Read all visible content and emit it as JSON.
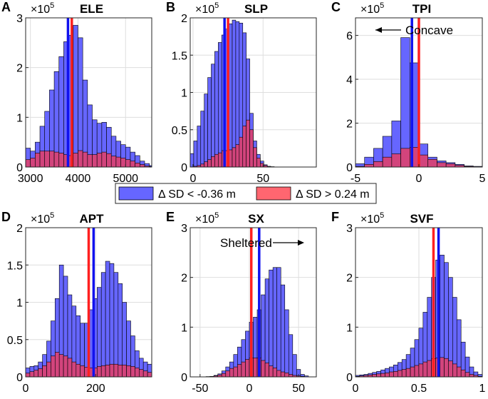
{
  "figure": {
    "legend": [
      {
        "label": "Δ SD < -0.36 m",
        "color": "#6666ff"
      },
      {
        "label": "Δ SD > 0.24 m",
        "color": "#ff6670"
      }
    ],
    "colors": {
      "blue_fill": "#6666ff",
      "red_fill": "#ff6670",
      "overlap_fill": "#d2447c",
      "blue_line": "#1111ee",
      "red_line": "#ff2020",
      "edge": "#000000",
      "grid": "#dedede"
    }
  },
  "chart_data": [
    {
      "id": "A",
      "letter": "A",
      "title": "ELE",
      "type": "bar",
      "exponent_label": "×10",
      "exponent": "5",
      "xlim": [
        2900,
        5550
      ],
      "ylim": [
        0,
        3
      ],
      "xticks": [
        3000,
        4000,
        5000
      ],
      "xtick_labels": [
        "3000",
        "4000",
        "5000"
      ],
      "yticks": [
        0,
        1,
        2,
        3
      ],
      "ytick_labels": [
        "0",
        "1",
        "2",
        "3"
      ],
      "bin_start": 2900,
      "bin_width": 100,
      "series": [
        {
          "name": "Δ SD < -0.36 m",
          "values": [
            0.38,
            0.32,
            0.5,
            0.82,
            1.12,
            1.55,
            1.92,
            2.22,
            2.52,
            2.65,
            2.85,
            2.6,
            1.75,
            1.25,
            0.95,
            0.88,
            0.9,
            0.8,
            0.62,
            0.52,
            0.45,
            0.4,
            0.3,
            0.23,
            0.12,
            0.07,
            0.03
          ]
        },
        {
          "name": "Δ SD > 0.24 m",
          "values": [
            0.15,
            0.18,
            0.28,
            0.32,
            0.32,
            0.32,
            0.3,
            0.28,
            0.25,
            0.23,
            0.28,
            0.33,
            0.3,
            0.25,
            0.25,
            0.28,
            0.3,
            0.27,
            0.22,
            0.2,
            0.18,
            0.15,
            0.12,
            0.08,
            0.05,
            0.02,
            0.01
          ]
        }
      ],
      "vlines": {
        "blue": 3790,
        "red": 3870
      }
    },
    {
      "id": "B",
      "letter": "B",
      "title": "SLP",
      "type": "bar",
      "exponent_label": "×10",
      "exponent": "5",
      "xlim": [
        -2,
        88
      ],
      "ylim": [
        0,
        2
      ],
      "xticks": [
        0,
        50
      ],
      "xtick_labels": [
        "0",
        "50"
      ],
      "yticks": [
        0,
        0.5,
        1,
        1.5,
        2
      ],
      "ytick_labels": [
        "0",
        "0.5",
        "1",
        "1.5",
        "2"
      ],
      "bin_start": -2,
      "bin_width": 2.5,
      "series": [
        {
          "name": "Δ SD < -0.36 m",
          "values": [
            0.18,
            0.35,
            0.55,
            0.75,
            0.98,
            1.2,
            1.38,
            1.55,
            1.67,
            1.77,
            1.85,
            1.92,
            1.97,
            1.95,
            1.93,
            1.8,
            1.45,
            0.72,
            0.35,
            0.17,
            0.08,
            0.03,
            0.01,
            0.005,
            0.002,
            0.001,
            0.0,
            0.0,
            0.0,
            0.0,
            0.0,
            0.0,
            0.0,
            0.0,
            0.0,
            0.0
          ]
        },
        {
          "name": "Δ SD > 0.24 m",
          "values": [
            0.0,
            0.01,
            0.02,
            0.04,
            0.07,
            0.1,
            0.14,
            0.17,
            0.19,
            0.22,
            0.22,
            0.23,
            0.26,
            0.3,
            0.4,
            0.55,
            0.63,
            0.5,
            0.26,
            0.12,
            0.05,
            0.02,
            0.005,
            0.0,
            0.0,
            0.0,
            0.0,
            0.0,
            0.0,
            0.0,
            0.0,
            0.0,
            0.0,
            0.0,
            0.0,
            0.0
          ]
        }
      ],
      "vlines": {
        "blue": 22.5,
        "red": 25
      }
    },
    {
      "id": "C",
      "letter": "C",
      "title": "TPI",
      "type": "bar",
      "exponent_label": "×10",
      "exponent": "5",
      "xlim": [
        -5,
        5
      ],
      "ylim": [
        0,
        6.8
      ],
      "xticks": [
        -5,
        0,
        5
      ],
      "xtick_labels": [
        "-5",
        "0",
        "5"
      ],
      "yticks": [
        0,
        2,
        4,
        6
      ],
      "ytick_labels": [
        "0",
        "2",
        "4",
        "6"
      ],
      "bin_start": -5,
      "bin_width": 0.71429,
      "series": [
        {
          "name": "Δ SD < -0.36 m",
          "values": [
            0.15,
            0.45,
            0.85,
            1.4,
            2.1,
            5.9,
            4.75,
            1.05,
            0.45,
            0.28,
            0.2,
            0.12,
            0.05,
            0.03
          ]
        },
        {
          "name": "Δ SD > 0.24 m",
          "values": [
            0.03,
            0.12,
            0.25,
            0.45,
            0.6,
            0.85,
            0.9,
            0.55,
            0.35,
            0.2,
            0.15,
            0.08,
            0.03,
            0.01
          ]
        }
      ],
      "vlines": {
        "blue": -0.55,
        "red": 0.0
      },
      "annotation": {
        "text": "Concave",
        "arrow": "left"
      }
    },
    {
      "id": "D",
      "letter": "D",
      "title": "APT",
      "type": "bar",
      "exponent_label": "×10",
      "exponent": "5",
      "xlim": [
        0,
        360
      ],
      "ylim": [
        0,
        2
      ],
      "xticks": [
        0,
        200
      ],
      "xtick_labels": [
        "0",
        "200"
      ],
      "yticks": [
        0,
        0.5,
        1,
        1.5,
        2
      ],
      "ytick_labels": [
        "0",
        "0.5",
        "1",
        "1.5",
        "2"
      ],
      "bin_start": 0,
      "bin_width": 12,
      "series": [
        {
          "name": "Δ SD < -0.36 m",
          "values": [
            0.12,
            0.14,
            0.15,
            0.2,
            0.3,
            0.48,
            0.75,
            1.05,
            1.5,
            1.35,
            1.1,
            0.95,
            0.82,
            0.72,
            0.72,
            0.9,
            1.05,
            1.2,
            1.4,
            1.55,
            1.52,
            1.4,
            1.25,
            1.0,
            0.75,
            0.55,
            0.35,
            0.25,
            0.2,
            0.17
          ]
        },
        {
          "name": "Δ SD > 0.24 m",
          "values": [
            0.05,
            0.07,
            0.09,
            0.11,
            0.15,
            0.2,
            0.28,
            0.33,
            0.3,
            0.28,
            0.25,
            0.2,
            0.17,
            0.15,
            0.13,
            0.12,
            0.12,
            0.14,
            0.15,
            0.16,
            0.17,
            0.17,
            0.16,
            0.16,
            0.15,
            0.14,
            0.12,
            0.1,
            0.08,
            0.06
          ]
        }
      ],
      "vlines": {
        "blue": 194,
        "red": 180
      }
    },
    {
      "id": "E",
      "letter": "E",
      "title": "SX",
      "type": "bar",
      "exponent_label": "×10",
      "exponent": "5",
      "xlim": [
        -60,
        68
      ],
      "ylim": [
        0,
        3
      ],
      "xticks": [
        -50,
        0,
        50
      ],
      "xtick_labels": [
        "-50",
        "0",
        "50"
      ],
      "yticks": [
        0,
        1,
        2,
        3
      ],
      "ytick_labels": [
        "0",
        "1",
        "2",
        "3"
      ],
      "bin_start": -60,
      "bin_width": 4,
      "series": [
        {
          "name": "Δ SD < -0.36 m",
          "values": [
            0.0,
            0.0,
            0.0,
            0.0,
            0.005,
            0.01,
            0.03,
            0.06,
            0.12,
            0.2,
            0.3,
            0.45,
            0.6,
            0.75,
            0.92,
            1.1,
            1.2,
            1.35,
            1.65,
            1.97,
            2.15,
            2.2,
            2.2,
            1.85,
            1.35,
            0.85,
            0.45,
            0.15,
            0.05,
            0.02,
            0.0,
            0.0
          ]
        },
        {
          "name": "Δ SD > 0.24 m",
          "values": [
            0.0,
            0.0,
            0.0,
            0.0,
            0.005,
            0.01,
            0.02,
            0.04,
            0.07,
            0.12,
            0.17,
            0.2,
            0.25,
            0.3,
            0.35,
            0.38,
            0.38,
            0.38,
            0.33,
            0.28,
            0.22,
            0.18,
            0.13,
            0.1,
            0.08,
            0.05,
            0.03,
            0.02,
            0.01,
            0.0,
            0.0,
            0.0
          ]
        }
      ],
      "vlines": {
        "blue": 10,
        "red": 2
      },
      "annotation": {
        "text": "Sheltered",
        "arrow": "right"
      }
    },
    {
      "id": "F",
      "letter": "F",
      "title": "SVF",
      "type": "bar",
      "exponent_label": "×10",
      "exponent": "5",
      "xlim": [
        0,
        1
      ],
      "ylim": [
        0,
        3
      ],
      "xticks": [
        0,
        0.5,
        1
      ],
      "xtick_labels": [
        "0",
        "0.5",
        "1"
      ],
      "yticks": [
        0,
        1,
        2,
        3
      ],
      "ytick_labels": [
        "0",
        "1",
        "2",
        "3"
      ],
      "bin_start": 0,
      "bin_width": 0.0333,
      "series": [
        {
          "name": "Δ SD < -0.36 m",
          "values": [
            0.03,
            0.04,
            0.05,
            0.07,
            0.09,
            0.11,
            0.14,
            0.17,
            0.2,
            0.24,
            0.29,
            0.35,
            0.45,
            0.58,
            0.75,
            0.98,
            1.3,
            1.6,
            2.0,
            2.35,
            2.45,
            2.3,
            2.0,
            1.6,
            1.15,
            0.7,
            0.4,
            0.2,
            0.1,
            0.05
          ]
        },
        {
          "name": "Δ SD > 0.24 m",
          "values": [
            0.01,
            0.02,
            0.03,
            0.04,
            0.05,
            0.06,
            0.07,
            0.08,
            0.1,
            0.11,
            0.13,
            0.15,
            0.17,
            0.2,
            0.23,
            0.26,
            0.3,
            0.33,
            0.37,
            0.38,
            0.39,
            0.37,
            0.32,
            0.26,
            0.2,
            0.14,
            0.09,
            0.05,
            0.03,
            0.01
          ]
        }
      ],
      "vlines": {
        "blue": 0.655,
        "red": 0.615
      }
    }
  ]
}
